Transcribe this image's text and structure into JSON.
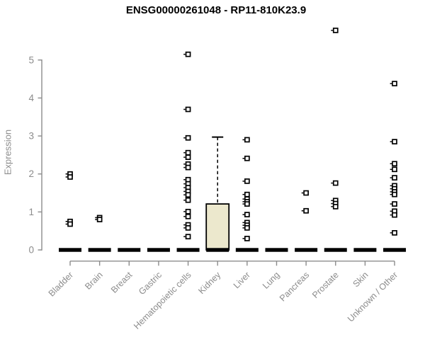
{
  "chart_data": {
    "type": "boxplot",
    "title": "ENSG00000261048 - RP11-810K23.9",
    "ylabel": "Expression",
    "xlabel": "",
    "ylim": [
      0,
      5
    ],
    "yticks": [
      0,
      1,
      2,
      3,
      4,
      5
    ],
    "grid": false,
    "legend": "none",
    "categories": [
      "Bladder",
      "Brain",
      "Breast",
      "Gastric",
      "Hematopoietic cells",
      "Kidney",
      "Liver",
      "Lung",
      "Pancreas",
      "Prostate",
      "Skin",
      "Unknown / Other"
    ],
    "series": [
      {
        "category": "Bladder",
        "box": {
          "q1": 0,
          "median": 0,
          "q3": 0,
          "whisker_low": 0,
          "whisker_high": 0
        },
        "points": [
          2.0,
          1.92,
          0.75,
          0.68
        ]
      },
      {
        "category": "Brain",
        "box": {
          "q1": 0,
          "median": 0,
          "q3": 0,
          "whisker_low": 0,
          "whisker_high": 0
        },
        "points": [
          0.85,
          0.8
        ]
      },
      {
        "category": "Breast",
        "box": {
          "q1": 0,
          "median": 0,
          "q3": 0,
          "whisker_low": 0,
          "whisker_high": 0
        },
        "points": []
      },
      {
        "category": "Gastric",
        "box": {
          "q1": 0,
          "median": 0,
          "q3": 0,
          "whisker_low": 0,
          "whisker_high": 0
        },
        "points": []
      },
      {
        "category": "Hematopoietic cells",
        "box": {
          "q1": 0,
          "median": 0,
          "q3": 0,
          "whisker_low": 0,
          "whisker_high": 0
        },
        "points": [
          5.15,
          3.7,
          2.95,
          2.56,
          2.44,
          2.26,
          2.17,
          1.85,
          1.74,
          1.64,
          1.54,
          1.45,
          1.31,
          1.01,
          0.88,
          0.66,
          0.58,
          0.35
        ]
      },
      {
        "category": "Kidney",
        "box": {
          "q1": 0,
          "median": 0,
          "q3": 1.21,
          "whisker_low": 0,
          "whisker_high": 2.97
        },
        "points": []
      },
      {
        "category": "Liver",
        "box": {
          "q1": 0,
          "median": 0,
          "q3": 0,
          "whisker_low": 0,
          "whisker_high": 0
        },
        "points": [
          2.9,
          2.41,
          1.81,
          1.46,
          1.34,
          1.27,
          1.21,
          0.93,
          0.72,
          0.65,
          0.58,
          0.3
        ]
      },
      {
        "category": "Lung",
        "box": {
          "q1": 0,
          "median": 0,
          "q3": 0,
          "whisker_low": 0,
          "whisker_high": 0
        },
        "points": []
      },
      {
        "category": "Pancreas",
        "box": {
          "q1": 0,
          "median": 0,
          "q3": 0,
          "whisker_low": 0,
          "whisker_high": 0
        },
        "points": [
          1.5,
          1.03
        ]
      },
      {
        "category": "Prostate",
        "box": {
          "q1": 0,
          "median": 0,
          "q3": 0,
          "whisker_low": 0,
          "whisker_high": 0
        },
        "points": [
          5.78,
          1.76,
          1.3,
          1.22,
          1.14
        ]
      },
      {
        "category": "Skin",
        "box": {
          "q1": 0,
          "median": 0,
          "q3": 0,
          "whisker_low": 0,
          "whisker_high": 0
        },
        "points": []
      },
      {
        "category": "Unknown / Other",
        "box": {
          "q1": 0,
          "median": 0,
          "q3": 0,
          "whisker_low": 0,
          "whisker_high": 0
        },
        "points": [
          4.38,
          2.85,
          2.27,
          2.12,
          1.9,
          1.69,
          1.61,
          1.53,
          1.46,
          1.21,
          1.02,
          0.92,
          0.45
        ]
      }
    ],
    "colors": {
      "box_fill": "#ece8cd",
      "box_stroke": "#000000",
      "median": "#000000",
      "point": "#000000",
      "point_fill": "#ffffff",
      "axis": "#8c8c8c",
      "tick_label": "#8c8c8c",
      "title": "#000000"
    }
  }
}
